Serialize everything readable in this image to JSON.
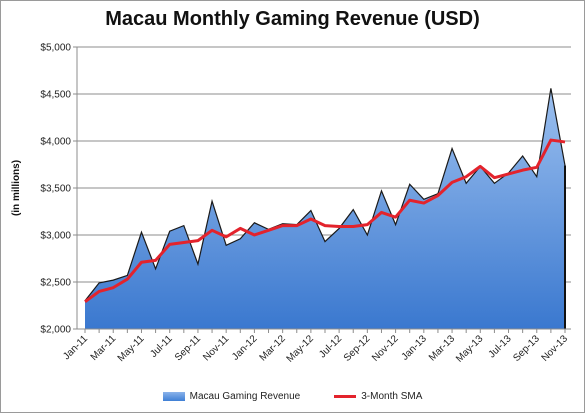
{
  "chart_data": {
    "type": "area",
    "title": "Macau Monthly Gaming Revenue (USD)",
    "ylabel": "(in millions)",
    "xlabel": "",
    "ylim": [
      2000,
      5000
    ],
    "yticks": [
      2000,
      2500,
      3000,
      3500,
      4000,
      4500,
      5000
    ],
    "ytick_labels": [
      "$2,000",
      "$2,500",
      "$3,000",
      "$3,500",
      "$4,000",
      "$4,500",
      "$5,000"
    ],
    "x": [
      "Jan-11",
      "Feb-11",
      "Mar-11",
      "Apr-11",
      "May-11",
      "Jun-11",
      "Jul-11",
      "Aug-11",
      "Sep-11",
      "Oct-11",
      "Nov-11",
      "Dec-11",
      "Jan-12",
      "Feb-12",
      "Mar-12",
      "Apr-12",
      "May-12",
      "Jun-12",
      "Jul-12",
      "Aug-12",
      "Sep-12",
      "Oct-12",
      "Nov-12",
      "Dec-12",
      "Jan-13",
      "Feb-13",
      "Mar-13",
      "Apr-13",
      "May-13",
      "Jun-13",
      "Jul-13",
      "Aug-13",
      "Sep-13",
      "Oct-13",
      "Nov-13"
    ],
    "x_tick_labels": [
      "Jan-11",
      "Mar-11",
      "May-11",
      "Jul-11",
      "Sep-11",
      "Nov-11",
      "Jan-12",
      "Mar-12",
      "May-12",
      "Jul-12",
      "Sep-12",
      "Nov-12",
      "Jan-13",
      "Mar-13",
      "May-13",
      "Jul-13",
      "Sep-13",
      "Nov-13"
    ],
    "grid": "horizontal",
    "legend": "bottom",
    "series": [
      {
        "name": "Macau Gaming Revenue",
        "type": "area",
        "color": "#5b8fdb",
        "values": [
          2300,
          2490,
          2520,
          2570,
          3030,
          2640,
          3040,
          3100,
          2690,
          3360,
          2890,
          2960,
          3130,
          3060,
          3120,
          3110,
          3260,
          2930,
          3070,
          3270,
          3000,
          3470,
          3110,
          3540,
          3380,
          3440,
          3920,
          3550,
          3730,
          3550,
          3660,
          3840,
          3620,
          4560,
          3740
        ]
      },
      {
        "name": "3-Month SMA",
        "type": "line",
        "color": "#e3232c",
        "values": [
          2290,
          2400,
          2440,
          2530,
          2710,
          2730,
          2900,
          2920,
          2940,
          3050,
          2980,
          3070,
          3000,
          3050,
          3100,
          3100,
          3170,
          3100,
          3090,
          3090,
          3110,
          3240,
          3190,
          3370,
          3340,
          3420,
          3560,
          3620,
          3730,
          3610,
          3650,
          3690,
          3720,
          4010,
          3990
        ]
      }
    ]
  }
}
